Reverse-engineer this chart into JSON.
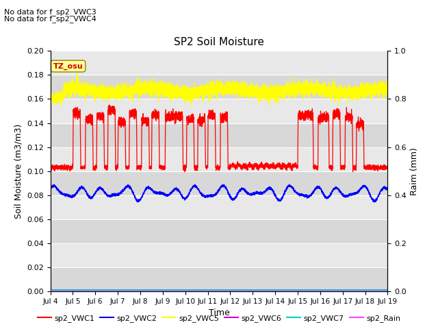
{
  "title": "SP2 Soil Moisture",
  "ylabel_left": "Soil Moisture (m3/m3)",
  "ylabel_right": "Raim (mm)",
  "xlabel": "Time",
  "no_data_text": [
    "No data for f_sp2_VWC3",
    "No data for f_sp2_VWC4"
  ],
  "tz_label": "TZ_osu",
  "ylim_left": [
    0.0,
    0.2
  ],
  "ylim_right": [
    0.0,
    1.0
  ],
  "yticks_left": [
    0.0,
    0.02,
    0.04,
    0.06,
    0.08,
    0.1,
    0.12,
    0.14,
    0.16,
    0.18,
    0.2
  ],
  "yticks_right": [
    0.0,
    0.2,
    0.4,
    0.6,
    0.8,
    1.0
  ],
  "xtick_labels": [
    "Jul 4",
    "Jul 5",
    "Jul 6",
    "Jul 7",
    "Jul 8",
    "Jul 9",
    "Jul 10",
    "Jul 11",
    "Jul 12",
    "Jul 13",
    "Jul 14",
    "Jul 15",
    "Jul 16",
    "Jul 17",
    "Jul 18",
    "Jul 19"
  ],
  "legend": [
    {
      "label": "sp2_VWC1",
      "color": "#ff0000"
    },
    {
      "label": "sp2_VWC2",
      "color": "#0000ff"
    },
    {
      "label": "sp2_VWC5",
      "color": "#ffff00"
    },
    {
      "label": "sp2_VWC6",
      "color": "#cc00cc"
    },
    {
      "label": "sp2_VWC7",
      "color": "#00cccc"
    },
    {
      "label": "sp2_Rain",
      "color": "#ff44ff"
    }
  ],
  "bg_color": "#e8e8e8",
  "fig_color": "#ffffff",
  "band_colors": [
    "#d8d8d8",
    "#e8e8e8"
  ],
  "grid_color": "#ffffff",
  "vwc5_base": 0.167,
  "vwc5_noise": 0.003,
  "vwc1_base": 0.103,
  "vwc1_peak": 0.145,
  "vwc2_base": 0.082,
  "vwc2_amp": 0.007
}
